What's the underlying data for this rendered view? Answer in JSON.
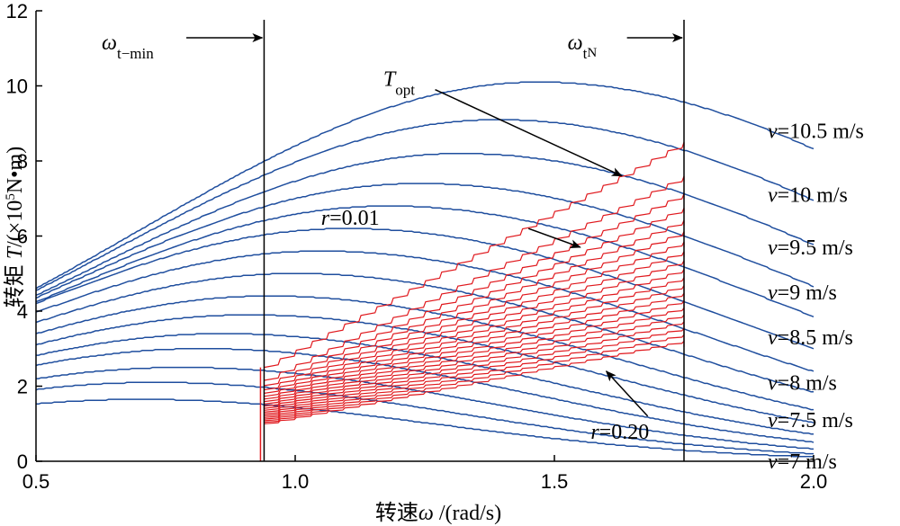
{
  "chart_data": {
    "type": "line",
    "xlabel_prefix": "转速",
    "xlabel_symbol": "ω",
    "xlabel_unit": " /(rad/s)",
    "ylabel_prefix": "转矩 ",
    "ylabel_symbol": "T",
    "ylabel_unit_a": "/(×10",
    "ylabel_unit_exp": "5",
    "ylabel_unit_b": "N•m)",
    "xlim": [
      0.5,
      2.0
    ],
    "ylim": [
      0,
      12
    ],
    "x_ticks": [
      {
        "value": 0.5,
        "label": "0.5"
      },
      {
        "value": 1.0,
        "label": "1.0"
      },
      {
        "value": 1.5,
        "label": "1.5"
      },
      {
        "value": 2.0,
        "label": "2.0"
      }
    ],
    "y_ticks": [
      {
        "value": 0,
        "label": "0"
      },
      {
        "value": 2,
        "label": "2"
      },
      {
        "value": 4,
        "label": "4"
      },
      {
        "value": 6,
        "label": "6"
      },
      {
        "value": 8,
        "label": "8"
      },
      {
        "value": 10,
        "label": "10"
      },
      {
        "value": 12,
        "label": "12"
      }
    ],
    "vlines": [
      {
        "x": 0.94,
        "label_symbol": "ω",
        "label_sub": "t−min",
        "arrow_from_x": 0.79
      },
      {
        "x": 1.75,
        "label_symbol": "ω",
        "label_sub": "t",
        "label_subsub": "N",
        "arrow_from_x": 1.64
      }
    ],
    "wind_series": [
      {
        "name": "v=7 m/s",
        "peak_x": 0.7,
        "peak_y": 1.65,
        "label_y": 0.0
      },
      {
        "name": "",
        "peak_x": 0.73,
        "peak_y": 2.1,
        "label_y": null
      },
      {
        "name": "v=7.5 m/s",
        "peak_x": 0.78,
        "peak_y": 2.5,
        "label_y": 1.1
      },
      {
        "name": "",
        "peak_x": 0.82,
        "peak_y": 3.0,
        "label_y": null
      },
      {
        "name": "v=8 m/s",
        "peak_x": 0.86,
        "peak_y": 3.4,
        "label_y": 2.1
      },
      {
        "name": "",
        "peak_x": 0.91,
        "peak_y": 3.9,
        "label_y": null
      },
      {
        "name": "v=8.5 m/s",
        "peak_x": 0.95,
        "peak_y": 4.4,
        "label_y": 3.3
      },
      {
        "name": "",
        "peak_x": 1.0,
        "peak_y": 5.0,
        "label_y": null
      },
      {
        "name": "v=9 m/s",
        "peak_x": 1.05,
        "peak_y": 5.6,
        "label_y": 4.5
      },
      {
        "name": "",
        "peak_x": 1.1,
        "peak_y": 6.2,
        "label_y": null
      },
      {
        "name": "v=9.5 m/s",
        "peak_x": 1.18,
        "peak_y": 6.8,
        "label_y": 5.7
      },
      {
        "name": "",
        "peak_x": 1.24,
        "peak_y": 7.4,
        "label_y": null
      },
      {
        "name": "v=10 m/s",
        "peak_x": 1.32,
        "peak_y": 8.2,
        "label_y": 7.1
      },
      {
        "name": "",
        "peak_x": 1.39,
        "peak_y": 9.1,
        "label_y": null
      },
      {
        "name": "v=10.5 m/s",
        "peak_x": 1.47,
        "peak_y": 10.1,
        "label_y": 8.8
      }
    ],
    "r_series": {
      "count": 20,
      "x_start": 0.94,
      "x_end": 1.75,
      "r_min": "0.01",
      "r_max": "0.20",
      "end_y_top": 8.5,
      "end_y_bottom": 3.2,
      "start_y_top": 2.5,
      "start_y_bottom": 1.0
    },
    "annotations": [
      {
        "id": "topt",
        "symbol": "T",
        "sub": "opt",
        "text_x": 1.17,
        "text_y": 10.0,
        "arrow_to_x": 1.63,
        "arrow_to_y": 7.6,
        "arrow_from_x": 1.27,
        "arrow_from_y": 9.9
      },
      {
        "id": "r-min",
        "prefix": "r",
        "text": "=0.01",
        "text_x": 1.05,
        "text_y": 6.3,
        "arrow_to_x": 1.55,
        "arrow_to_y": 5.7,
        "arrow_from_x": 1.45,
        "arrow_from_y": 6.2
      },
      {
        "id": "r-max",
        "prefix": "r",
        "text": "=0.20",
        "text_x": 1.57,
        "text_y": 0.6,
        "arrow_to_x": 1.6,
        "arrow_to_y": 2.4,
        "arrow_from_x": 1.68,
        "arrow_from_y": 1.2
      }
    ],
    "colors": {
      "wind_curve": "#1f4e9e",
      "r_curve": "#e0191e",
      "axis": "#000000",
      "vline": "#000000"
    },
    "grid": false
  }
}
